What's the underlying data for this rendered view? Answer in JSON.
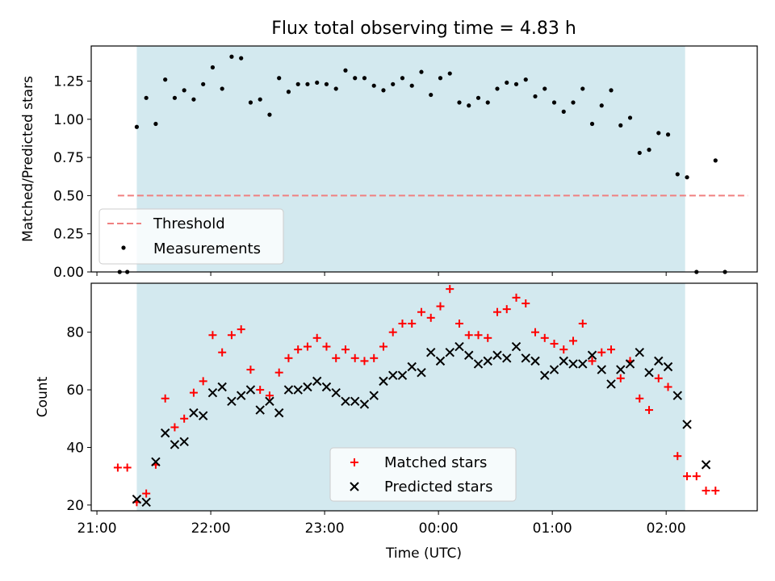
{
  "chart_data": [
    {
      "type": "scatter",
      "title": "Flux total observing time = 4.83 h",
      "xlabel": "",
      "ylabel": "Matched/Predicted stars",
      "ylim": [
        0,
        1.48
      ],
      "xlim": [
        "20:57",
        "02:48"
      ],
      "x_axis": "time (UTC)",
      "shaded_interval": {
        "x": [
          "21:21",
          "02:10"
        ],
        "color": "#d3e9ef"
      },
      "yticks": [
        "0.00",
        "0.25",
        "0.50",
        "0.75",
        "1.00",
        "1.25"
      ],
      "threshold": {
        "name": "Threshold",
        "value": 0.5,
        "x": [
          "21:11",
          "02:43"
        ],
        "color": "#f08080",
        "style": "dashed"
      },
      "series": [
        {
          "name": "Measurements",
          "color": "#000000",
          "marker": "dot",
          "points": [
            [
              "21:12",
              0.0
            ],
            [
              "21:16",
              0.0
            ],
            [
              "21:21",
              0.95
            ],
            [
              "21:26",
              1.14
            ],
            [
              "21:31",
              0.97
            ],
            [
              "21:36",
              1.26
            ],
            [
              "21:41",
              1.14
            ],
            [
              "21:46",
              1.19
            ],
            [
              "21:51",
              1.13
            ],
            [
              "21:56",
              1.23
            ],
            [
              "22:01",
              1.34
            ],
            [
              "22:06",
              1.2
            ],
            [
              "22:11",
              1.41
            ],
            [
              "22:16",
              1.4
            ],
            [
              "22:21",
              1.11
            ],
            [
              "22:26",
              1.13
            ],
            [
              "22:31",
              1.03
            ],
            [
              "22:36",
              1.27
            ],
            [
              "22:41",
              1.18
            ],
            [
              "22:46",
              1.23
            ],
            [
              "22:51",
              1.23
            ],
            [
              "22:56",
              1.24
            ],
            [
              "23:01",
              1.23
            ],
            [
              "23:06",
              1.2
            ],
            [
              "23:11",
              1.32
            ],
            [
              "23:16",
              1.27
            ],
            [
              "23:21",
              1.27
            ],
            [
              "23:26",
              1.22
            ],
            [
              "23:31",
              1.19
            ],
            [
              "23:36",
              1.23
            ],
            [
              "23:41",
              1.27
            ],
            [
              "23:46",
              1.22
            ],
            [
              "23:51",
              1.31
            ],
            [
              "23:56",
              1.16
            ],
            [
              "00:01",
              1.27
            ],
            [
              "00:06",
              1.3
            ],
            [
              "00:11",
              1.11
            ],
            [
              "00:16",
              1.09
            ],
            [
              "00:21",
              1.14
            ],
            [
              "00:26",
              1.11
            ],
            [
              "00:31",
              1.2
            ],
            [
              "00:36",
              1.24
            ],
            [
              "00:41",
              1.23
            ],
            [
              "00:46",
              1.26
            ],
            [
              "00:51",
              1.15
            ],
            [
              "00:56",
              1.2
            ],
            [
              "01:01",
              1.11
            ],
            [
              "01:06",
              1.05
            ],
            [
              "01:11",
              1.11
            ],
            [
              "01:16",
              1.2
            ],
            [
              "01:21",
              0.97
            ],
            [
              "01:26",
              1.09
            ],
            [
              "01:31",
              1.19
            ],
            [
              "01:36",
              0.96
            ],
            [
              "01:41",
              1.01
            ],
            [
              "01:46",
              0.78
            ],
            [
              "01:51",
              0.8
            ],
            [
              "01:56",
              0.91
            ],
            [
              "02:01",
              0.9
            ],
            [
              "02:06",
              0.64
            ],
            [
              "02:11",
              0.62
            ],
            [
              "02:16",
              0.0
            ],
            [
              "02:26",
              0.73
            ],
            [
              "02:31",
              0.0
            ]
          ]
        }
      ],
      "legend": "lower-left"
    },
    {
      "type": "scatter",
      "title": "",
      "xlabel": "Time (UTC)",
      "ylabel": "Count",
      "ylim": [
        18,
        97
      ],
      "xlim": [
        "20:57",
        "02:48"
      ],
      "x_axis": "time (UTC)",
      "shaded_interval": {
        "x": [
          "21:21",
          "02:10"
        ],
        "color": "#d3e9ef"
      },
      "yticks": [
        "20",
        "40",
        "60",
        "80"
      ],
      "xticks": [
        "21:00",
        "22:00",
        "23:00",
        "00:00",
        "01:00",
        "02:00"
      ],
      "series": [
        {
          "name": "Matched stars",
          "color": "#ff0000",
          "marker": "plus",
          "points": [
            [
              "21:11",
              33
            ],
            [
              "21:16",
              33
            ],
            [
              "21:21",
              21
            ],
            [
              "21:26",
              24
            ],
            [
              "21:31",
              34
            ],
            [
              "21:36",
              57
            ],
            [
              "21:41",
              47
            ],
            [
              "21:46",
              50
            ],
            [
              "21:51",
              59
            ],
            [
              "21:56",
              63
            ],
            [
              "22:01",
              79
            ],
            [
              "22:06",
              73
            ],
            [
              "22:11",
              79
            ],
            [
              "22:16",
              81
            ],
            [
              "22:21",
              67
            ],
            [
              "22:26",
              60
            ],
            [
              "22:31",
              58
            ],
            [
              "22:36",
              66
            ],
            [
              "22:41",
              71
            ],
            [
              "22:46",
              74
            ],
            [
              "22:51",
              75
            ],
            [
              "22:56",
              78
            ],
            [
              "23:01",
              75
            ],
            [
              "23:06",
              71
            ],
            [
              "23:11",
              74
            ],
            [
              "23:16",
              71
            ],
            [
              "23:21",
              70
            ],
            [
              "23:26",
              71
            ],
            [
              "23:31",
              75
            ],
            [
              "23:36",
              80
            ],
            [
              "23:41",
              83
            ],
            [
              "23:46",
              83
            ],
            [
              "23:51",
              87
            ],
            [
              "23:56",
              85
            ],
            [
              "00:01",
              89
            ],
            [
              "00:06",
              95
            ],
            [
              "00:11",
              83
            ],
            [
              "00:16",
              79
            ],
            [
              "00:21",
              79
            ],
            [
              "00:26",
              78
            ],
            [
              "00:31",
              87
            ],
            [
              "00:36",
              88
            ],
            [
              "00:41",
              92
            ],
            [
              "00:46",
              90
            ],
            [
              "00:51",
              80
            ],
            [
              "00:56",
              78
            ],
            [
              "01:01",
              76
            ],
            [
              "01:06",
              74
            ],
            [
              "01:11",
              77
            ],
            [
              "01:16",
              83
            ],
            [
              "01:21",
              70
            ],
            [
              "01:26",
              73
            ],
            [
              "01:31",
              74
            ],
            [
              "01:36",
              64
            ],
            [
              "01:41",
              70
            ],
            [
              "01:46",
              57
            ],
            [
              "01:51",
              53
            ],
            [
              "01:56",
              64
            ],
            [
              "02:01",
              61
            ],
            [
              "02:06",
              37
            ],
            [
              "02:11",
              30
            ],
            [
              "02:16",
              30
            ],
            [
              "02:21",
              25
            ],
            [
              "02:26",
              25
            ]
          ]
        },
        {
          "name": "Predicted stars",
          "color": "#000000",
          "marker": "x",
          "points": [
            [
              "21:21",
              22
            ],
            [
              "21:26",
              21
            ],
            [
              "21:31",
              35
            ],
            [
              "21:36",
              45
            ],
            [
              "21:41",
              41
            ],
            [
              "21:46",
              42
            ],
            [
              "21:51",
              52
            ],
            [
              "21:56",
              51
            ],
            [
              "22:01",
              59
            ],
            [
              "22:06",
              61
            ],
            [
              "22:11",
              56
            ],
            [
              "22:16",
              58
            ],
            [
              "22:21",
              60
            ],
            [
              "22:26",
              53
            ],
            [
              "22:31",
              56
            ],
            [
              "22:36",
              52
            ],
            [
              "22:41",
              60
            ],
            [
              "22:46",
              60
            ],
            [
              "22:51",
              61
            ],
            [
              "22:56",
              63
            ],
            [
              "23:01",
              61
            ],
            [
              "23:06",
              59
            ],
            [
              "23:11",
              56
            ],
            [
              "23:16",
              56
            ],
            [
              "23:21",
              55
            ],
            [
              "23:26",
              58
            ],
            [
              "23:31",
              63
            ],
            [
              "23:36",
              65
            ],
            [
              "23:41",
              65
            ],
            [
              "23:46",
              68
            ],
            [
              "23:51",
              66
            ],
            [
              "23:56",
              73
            ],
            [
              "00:01",
              70
            ],
            [
              "00:06",
              73
            ],
            [
              "00:11",
              75
            ],
            [
              "00:16",
              72
            ],
            [
              "00:21",
              69
            ],
            [
              "00:26",
              70
            ],
            [
              "00:31",
              72
            ],
            [
              "00:36",
              71
            ],
            [
              "00:41",
              75
            ],
            [
              "00:46",
              71
            ],
            [
              "00:51",
              70
            ],
            [
              "00:56",
              65
            ],
            [
              "01:01",
              67
            ],
            [
              "01:06",
              70
            ],
            [
              "01:11",
              69
            ],
            [
              "01:16",
              69
            ],
            [
              "01:21",
              72
            ],
            [
              "01:26",
              67
            ],
            [
              "01:31",
              62
            ],
            [
              "01:36",
              67
            ],
            [
              "01:41",
              69
            ],
            [
              "01:46",
              73
            ],
            [
              "01:51",
              66
            ],
            [
              "01:56",
              70
            ],
            [
              "02:01",
              68
            ],
            [
              "02:06",
              58
            ],
            [
              "02:11",
              48
            ],
            [
              "02:21",
              34
            ]
          ]
        }
      ],
      "legend": "lower-center"
    }
  ]
}
